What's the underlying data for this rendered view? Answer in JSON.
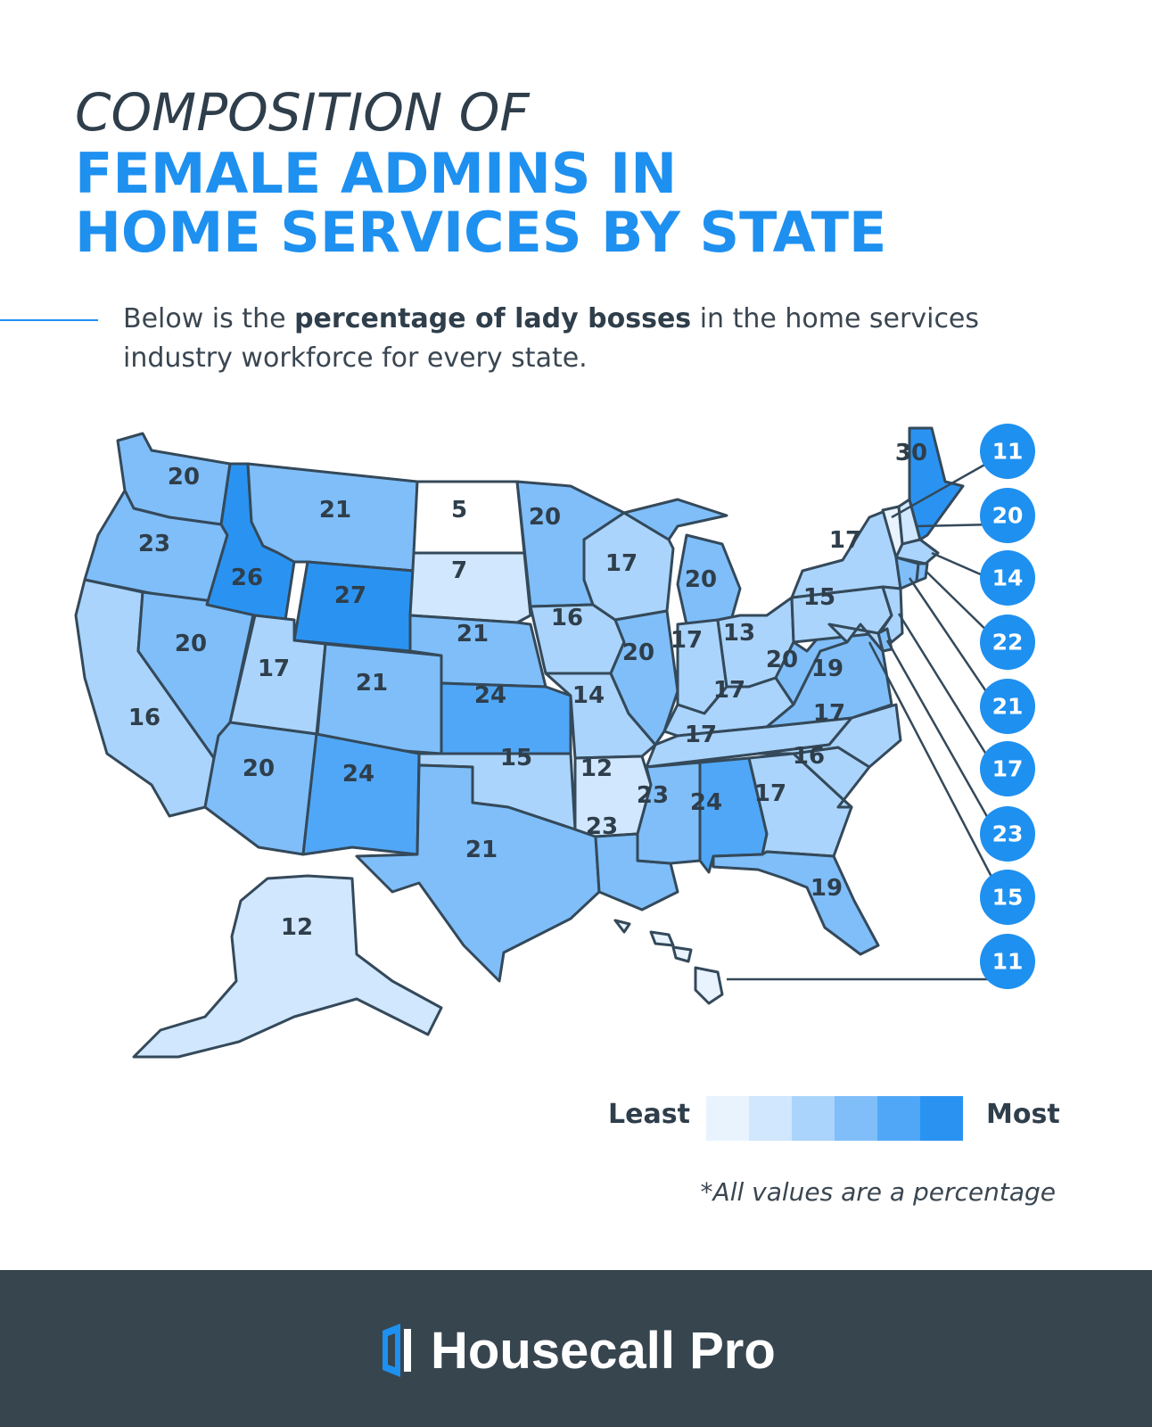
{
  "title": {
    "line1": "COMPOSITION OF",
    "line2": "FEMALE ADMINS IN",
    "line3": "HOME SERVICES BY STATE"
  },
  "intro": {
    "before": "Below is the ",
    "bold": "percentage of lady bosses",
    "after": " in the home services industry workforce for every state."
  },
  "colors": {
    "scale": [
      "#e8f3fe",
      "#d0e7fd",
      "#aad4fb",
      "#7fbef9",
      "#50a7f7",
      "#2a93f2"
    ],
    "accent": "#1e90f0",
    "outline": "#34495a",
    "footer": "#37454f"
  },
  "states": {
    "WA": "20",
    "OR": "23",
    "CA": "16",
    "NV": "20",
    "ID": "26",
    "MT": "21",
    "WY": "27",
    "UT": "17",
    "AZ": "20",
    "CO": "21",
    "NM": "24",
    "ND": "5",
    "SD": "7",
    "NE": "21",
    "KS": "24",
    "OK": "15",
    "TX": "21",
    "MN": "20",
    "IA": "16",
    "MO": "14",
    "AR": "12",
    "LA": "23",
    "WI": "17",
    "IL": "20",
    "MI": "20",
    "IN": "17",
    "OH": "13",
    "KY": "17",
    "TN": "17",
    "MS": "23",
    "AL": "24",
    "GA": "17",
    "FL": "19",
    "SC": "16",
    "NC": "17",
    "VA": "19",
    "WV": "20",
    "PA": "15",
    "NY": "17",
    "ME": "30",
    "AK": "12"
  },
  "bubbles": [
    "11",
    "20",
    "14",
    "22",
    "21",
    "17",
    "23",
    "15",
    "11"
  ],
  "legend": {
    "least": "Least",
    "most": "Most"
  },
  "footnote": "*All values are a percentage",
  "brand": {
    "name": "Housecall Pro"
  }
}
